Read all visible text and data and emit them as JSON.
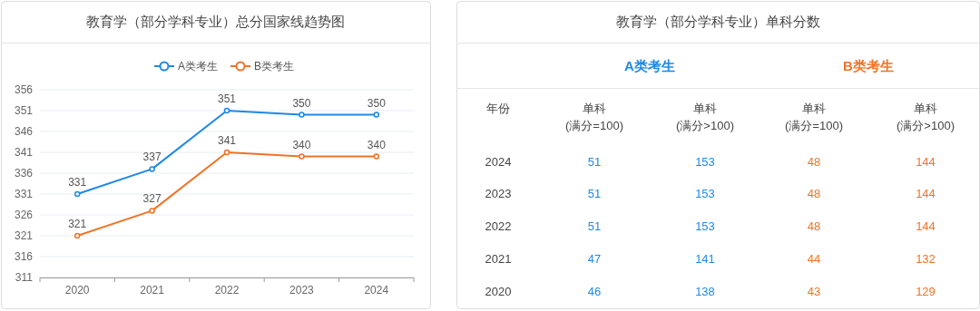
{
  "chart_data": [
    {
      "type": "line",
      "title": "教育学（部分学科专业）总分国家线趋势图",
      "categories": [
        "2020",
        "2021",
        "2022",
        "2023",
        "2024"
      ],
      "series": [
        {
          "name": "A类考生",
          "color": "#1e88e5",
          "values": [
            331,
            337,
            351,
            350,
            350
          ]
        },
        {
          "name": "B类考生",
          "color": "#f07325",
          "values": [
            321,
            327,
            341,
            340,
            340
          ]
        }
      ],
      "ylim": [
        311,
        356
      ],
      "yticks": [
        311,
        316,
        321,
        326,
        331,
        336,
        341,
        346,
        351,
        356
      ],
      "grid": "y",
      "legend": "top",
      "marker": "circle",
      "data_labels": true
    },
    {
      "type": "heatmap",
      "title": "教育学（部分学科专业）单科分数",
      "ylabel": "年份",
      "categories": [
        "单科(满分=100)",
        "单科(满分>100)",
        "单科(满分=100)",
        "单科(满分>100)"
      ],
      "y_categories": [
        "2024",
        "2023",
        "2022",
        "2021",
        "2020"
      ],
      "cells": [
        [
          51,
          153,
          48,
          144
        ],
        [
          51,
          153,
          48,
          144
        ],
        [
          51,
          153,
          48,
          144
        ],
        [
          47,
          141,
          44,
          132
        ],
        [
          46,
          138,
          43,
          129
        ]
      ],
      "colors": [
        "#1e88e5",
        "#1e88e5",
        "#f07325",
        "#f07325"
      ],
      "annotations": [
        "A类考生",
        "B类考生"
      ],
      "data_labels": true
    }
  ]
}
